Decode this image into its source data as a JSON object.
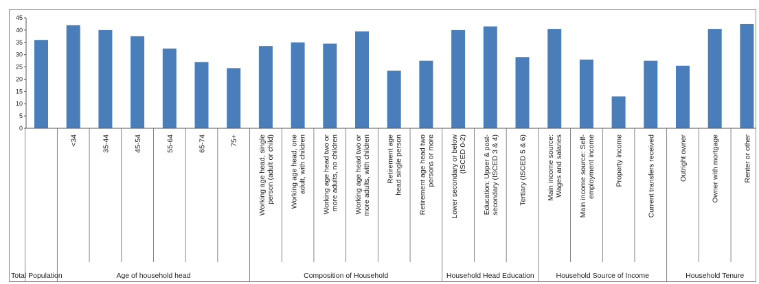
{
  "chart_data": {
    "type": "bar",
    "ylim": [
      0,
      45
    ],
    "yticks": [
      "0",
      "5",
      "10",
      "15",
      "20",
      "25",
      "30",
      "35",
      "40",
      "45"
    ],
    "bar_color": "#4a7ebb",
    "categories": [
      [
        ""
      ],
      [
        "<34"
      ],
      [
        "35-44"
      ],
      [
        "45-54"
      ],
      [
        "55-64"
      ],
      [
        "65-74"
      ],
      [
        "75+"
      ],
      [
        "Working age head, single",
        "person (adult or child)"
      ],
      [
        "Working age head, one",
        "adult, with children"
      ],
      [
        "Working age head two or",
        "more adults, no children"
      ],
      [
        "Working age head two or",
        "more adults, with children"
      ],
      [
        "Retirement age",
        "head single person"
      ],
      [
        "Retirement age head two",
        "persons or more"
      ],
      [
        "Lower secondary or below",
        "(ISCED 0-2)"
      ],
      [
        "Education: Upper & post-",
        "secondary (ISCED 3 & 4)"
      ],
      [
        "Tertiary (ISCED 5 & 6)"
      ],
      [
        "Main income source:",
        "Wages and salaries"
      ],
      [
        "Main income source: Self-",
        "employment income"
      ],
      [
        "Property income"
      ],
      [
        "Current transfers received"
      ],
      [
        "Outright owner"
      ],
      [
        "Owner with mortgage"
      ],
      [
        "Renter or other"
      ]
    ],
    "values": [
      36,
      42,
      40,
      37.5,
      32.5,
      27,
      24.5,
      33.5,
      35,
      34.5,
      39.5,
      23.5,
      27.5,
      40,
      41.5,
      29,
      40.5,
      28,
      13,
      27.5,
      25.5,
      40.5,
      42.5
    ],
    "groups": [
      {
        "label": "Total Population",
        "start": 0,
        "end": 0
      },
      {
        "label": "Age of household head",
        "start": 1,
        "end": 6
      },
      {
        "label": "Composition of Household",
        "start": 7,
        "end": 12
      },
      {
        "label": "Household Head Education",
        "start": 13,
        "end": 15
      },
      {
        "label": "Household Source of Income",
        "start": 16,
        "end": 19
      },
      {
        "label": "Household Tenure",
        "start": 20,
        "end": 22
      }
    ]
  }
}
